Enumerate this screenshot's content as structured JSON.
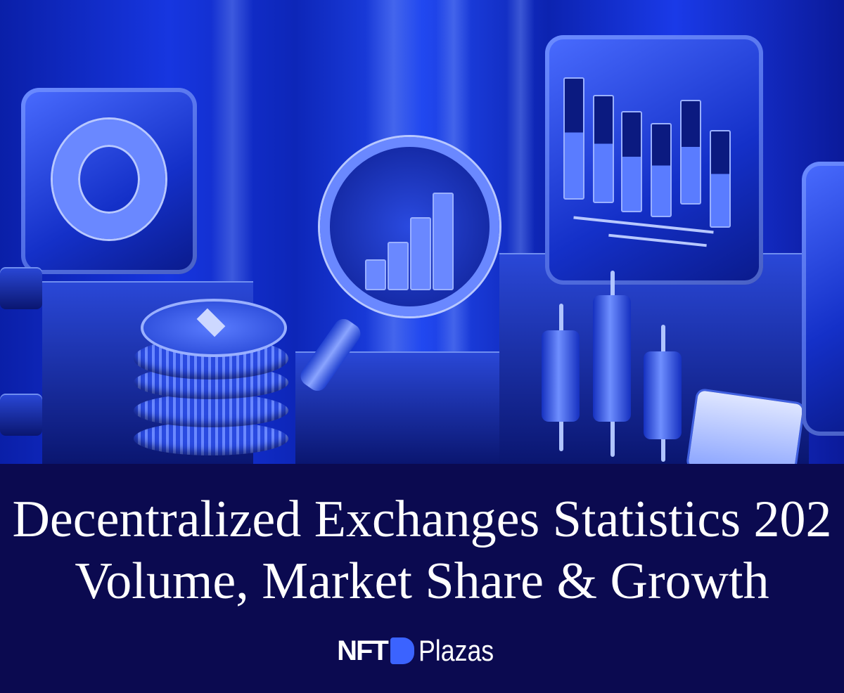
{
  "title": {
    "line1": "Decentralized Exchanges Statistics 202",
    "line2": "Volume, Market Share & Growth"
  },
  "brand": {
    "part1": "NFT",
    "part2": "Plazas",
    "mark_color": "#3b63ff"
  },
  "colors": {
    "banner_background": "#0b0a50",
    "hero_blue": "#1736e0"
  },
  "illustration": {
    "objects": [
      "donut-chart-panel",
      "ethereum-coin-stack",
      "magnifier-bar-chart",
      "bar-chart-panel",
      "candlesticks",
      "calendar",
      "phone-panel"
    ]
  }
}
